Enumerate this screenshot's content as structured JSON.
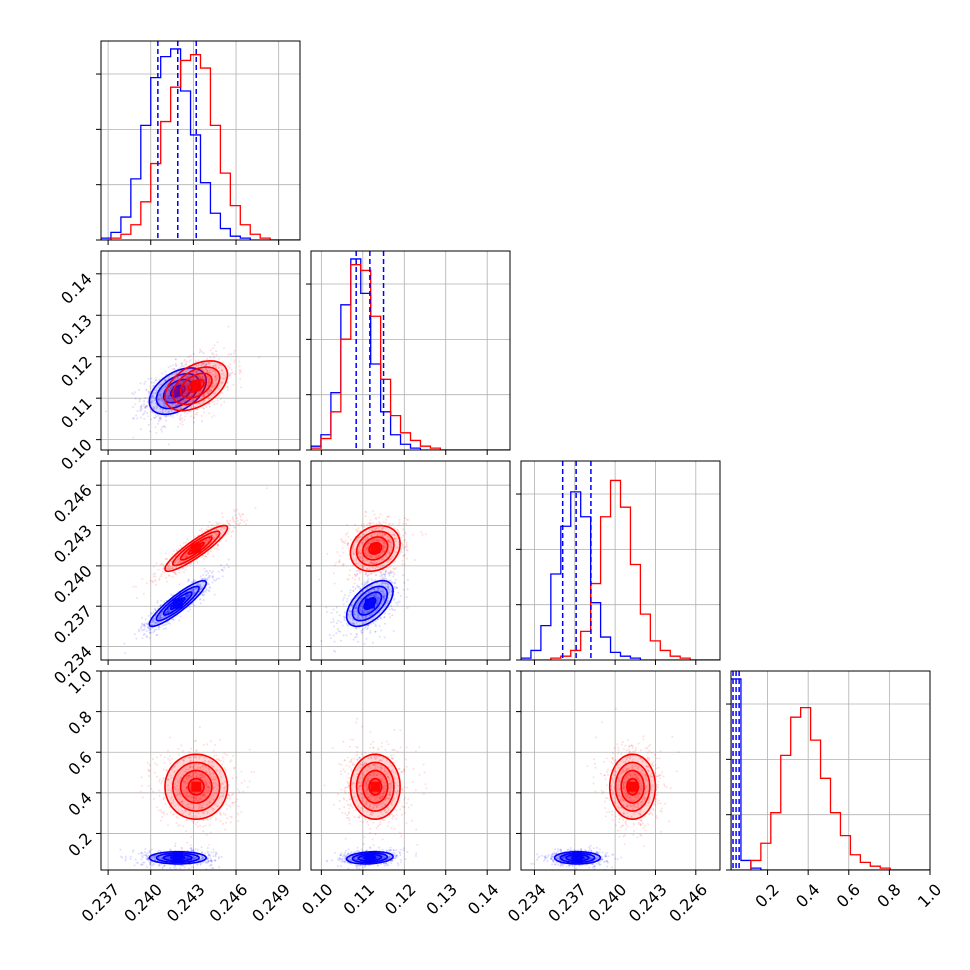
{
  "chart_data": {
    "type": "corner",
    "title": "",
    "colors": {
      "blue": "#0000ff",
      "red": "#ff0000",
      "grid": "#b0b0b0"
    },
    "grid": true,
    "parameters": [
      {
        "index": 0,
        "range": [
          0.2365,
          0.2505
        ],
        "ticks": [
          "0.237",
          "0.240",
          "0.243",
          "0.246",
          "0.249"
        ],
        "tick_values": [
          0.237,
          0.24,
          0.243,
          0.246,
          0.249
        ]
      },
      {
        "index": 1,
        "range": [
          0.0975,
          0.1455
        ],
        "ticks": [
          "0.10",
          "0.11",
          "0.12",
          "0.13",
          "0.14"
        ],
        "tick_values": [
          0.1,
          0.11,
          0.12,
          0.13,
          0.14
        ]
      },
      {
        "index": 2,
        "range": [
          0.233,
          0.2478
        ],
        "ticks": [
          "0.234",
          "0.237",
          "0.240",
          "0.243",
          "0.246"
        ],
        "tick_values": [
          0.234,
          0.237,
          0.24,
          0.243,
          0.246
        ]
      },
      {
        "index": 3,
        "range": [
          0.02,
          1.0
        ],
        "ticks": [
          "0.2",
          "0.4",
          "0.6",
          "0.8",
          "1.0"
        ],
        "tick_values": [
          0.2,
          0.4,
          0.6,
          0.8,
          1.0
        ]
      }
    ],
    "marginals": [
      {
        "param": 0,
        "blue": {
          "edges_start": 0.2365,
          "bin_width": 0.0007,
          "counts": [
            0.01,
            0.04,
            0.12,
            0.32,
            0.6,
            0.85,
            0.96,
            1.0,
            0.78,
            0.55,
            0.3,
            0.14,
            0.06,
            0.02,
            0.01,
            0.0,
            0.0,
            0.0,
            0.0,
            0.0
          ]
        },
        "red": {
          "edges_start": 0.2365,
          "bin_width": 0.0007,
          "counts": [
            0.0,
            0.01,
            0.03,
            0.08,
            0.2,
            0.4,
            0.62,
            0.8,
            0.94,
            0.97,
            0.9,
            0.6,
            0.35,
            0.18,
            0.08,
            0.03,
            0.01,
            0.0,
            0.0,
            0.0
          ]
        },
        "quantiles": [
          0.2405,
          0.2419,
          0.2432
        ]
      },
      {
        "param": 1,
        "blue": {
          "edges_start": 0.0975,
          "bin_width": 0.0024,
          "counts": [
            0.02,
            0.08,
            0.3,
            0.76,
            1.0,
            0.82,
            0.45,
            0.2,
            0.08,
            0.03,
            0.01,
            0.0,
            0.0,
            0.0,
            0.0,
            0.0,
            0.0,
            0.0,
            0.0,
            0.0
          ]
        },
        "red": {
          "edges_start": 0.0975,
          "bin_width": 0.0024,
          "counts": [
            0.01,
            0.06,
            0.2,
            0.58,
            0.97,
            0.94,
            0.7,
            0.37,
            0.18,
            0.09,
            0.05,
            0.02,
            0.01,
            0.0,
            0.0,
            0.0,
            0.0,
            0.0,
            0.0,
            0.0
          ]
        },
        "quantiles": [
          0.1084,
          0.1117,
          0.115
        ]
      },
      {
        "param": 2,
        "blue": {
          "edges_start": 0.233,
          "bin_width": 0.00074,
          "counts": [
            0.01,
            0.05,
            0.18,
            0.45,
            0.7,
            0.88,
            0.75,
            0.3,
            0.12,
            0.04,
            0.02,
            0.01,
            0.0,
            0.0,
            0.0,
            0.0,
            0.0,
            0.0,
            0.0,
            0.0
          ]
        },
        "red": {
          "edges_start": 0.233,
          "bin_width": 0.00074,
          "counts": [
            0.0,
            0.0,
            0.0,
            0.01,
            0.02,
            0.05,
            0.15,
            0.4,
            0.75,
            0.94,
            0.8,
            0.5,
            0.24,
            0.1,
            0.05,
            0.02,
            0.01,
            0.0,
            0.0,
            0.0
          ]
        },
        "quantiles": [
          0.2361,
          0.2371,
          0.2382
        ]
      },
      {
        "param": 3,
        "blue": {
          "edges_start": 0.02,
          "bin_width": 0.049,
          "counts": [
            1.0,
            0.05,
            0.01,
            0.0,
            0.0,
            0.0,
            0.0,
            0.0,
            0.0,
            0.0,
            0.0,
            0.0,
            0.0,
            0.0,
            0.0,
            0.0,
            0.0,
            0.0,
            0.0,
            0.0
          ]
        },
        "red": {
          "edges_start": 0.02,
          "bin_width": 0.049,
          "counts": [
            0.0,
            0.0,
            0.05,
            0.14,
            0.3,
            0.6,
            0.8,
            0.85,
            0.68,
            0.48,
            0.3,
            0.18,
            0.08,
            0.04,
            0.02,
            0.01,
            0.0,
            0.0,
            0.0,
            0.0
          ]
        },
        "quantiles": [
          0.03,
          0.045,
          0.06
        ]
      }
    ],
    "joints": [
      {
        "x": 0,
        "y": 1,
        "blue": {
          "mean": [
            0.2419,
            0.1117
          ],
          "sd": [
            0.001,
            0.0028
          ],
          "corr": 0.45
        },
        "red": {
          "mean": [
            0.2432,
            0.113
          ],
          "sd": [
            0.0011,
            0.003
          ],
          "corr": 0.45
        }
      },
      {
        "x": 0,
        "y": 2,
        "blue": {
          "mean": [
            0.2419,
            0.2372
          ],
          "sd": [
            0.001,
            0.00085
          ],
          "corr": 0.9
        },
        "red": {
          "mean": [
            0.2432,
            0.2413
          ],
          "sd": [
            0.0011,
            0.00085
          ],
          "corr": 0.9
        }
      },
      {
        "x": 1,
        "y": 2,
        "blue": {
          "mean": [
            0.1117,
            0.2372
          ],
          "sd": [
            0.0028,
            0.00085
          ],
          "corr": 0.55
        },
        "red": {
          "mean": [
            0.113,
            0.2413
          ],
          "sd": [
            0.003,
            0.00085
          ],
          "corr": 0.2
        }
      },
      {
        "x": 0,
        "y": 3,
        "blue": {
          "mean": [
            0.2419,
            0.08
          ],
          "sd": [
            0.001,
            0.015
          ],
          "corr": 0.0
        },
        "red": {
          "mean": [
            0.2432,
            0.43
          ],
          "sd": [
            0.0011,
            0.08
          ],
          "corr": 0.0
        }
      },
      {
        "x": 1,
        "y": 3,
        "blue": {
          "mean": [
            0.1117,
            0.08
          ],
          "sd": [
            0.0028,
            0.015
          ],
          "corr": 0.2
        },
        "red": {
          "mean": [
            0.113,
            0.43
          ],
          "sd": [
            0.003,
            0.08
          ],
          "corr": 0.0
        }
      },
      {
        "x": 2,
        "y": 3,
        "blue": {
          "mean": [
            0.2372,
            0.08
          ],
          "sd": [
            0.00085,
            0.015
          ],
          "corr": 0.0
        },
        "red": {
          "mean": [
            0.2413,
            0.43
          ],
          "sd": [
            0.00085,
            0.08
          ],
          "corr": 0.0
        }
      }
    ],
    "contour_levels_sigma": [
      0.5,
      1.0,
      1.5,
      2.0
    ],
    "contour_level_labels": [
      "0.5",
      "1.0",
      "1.5",
      "2.0"
    ]
  }
}
